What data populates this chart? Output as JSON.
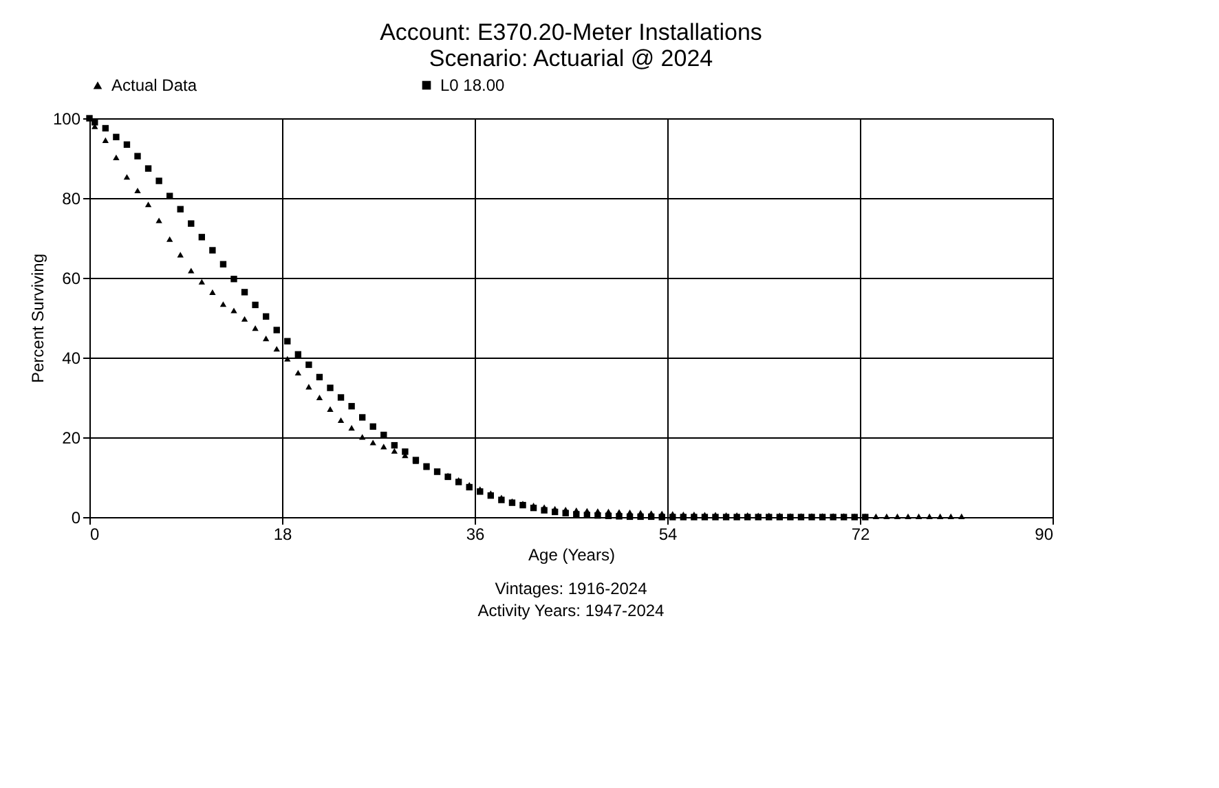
{
  "chart_data": {
    "type": "scatter",
    "title": [
      "Account: E370.20-Meter Installations",
      "Scenario: Actuarial @ 2024"
    ],
    "xlabel": "Age (Years)",
    "ylabel": "Percent Surviving",
    "annotations": [
      "Vintages: 1916-2024",
      "Activity Years: 1947-2024"
    ],
    "xlim": [
      0,
      90
    ],
    "xticks": [
      0,
      18,
      36,
      54,
      72,
      90
    ],
    "ylim": [
      0,
      100
    ],
    "yticks": [
      0,
      20,
      40,
      60,
      80,
      100
    ],
    "grid": true,
    "legend": "top",
    "series": [
      {
        "name": "Actual Data",
        "color": "#000000",
        "marker": "triangle",
        "x": [
          0.5,
          1.5,
          2.5,
          3.5,
          4.5,
          5.5,
          6.5,
          7.5,
          8.5,
          9.5,
          10.5,
          11.5,
          12.5,
          13.5,
          14.5,
          15.5,
          16.5,
          17.5,
          18.5,
          19.5,
          20.5,
          21.5,
          22.5,
          23.5,
          24.5,
          25.5,
          26.5,
          27.5,
          28.5,
          29.5,
          30.5,
          31.5,
          32.5,
          33.5,
          34.5,
          35.5,
          36.5,
          37.5,
          38.5,
          39.5,
          40.5,
          41.5,
          42.5,
          43.5,
          44.5,
          45.5,
          46.5,
          47.5,
          48.5,
          49.5,
          50.5,
          51.5,
          52.5,
          53.5,
          54.5,
          55.5,
          56.5,
          57.5,
          58.5,
          59.5,
          60.5,
          61.5,
          62.5,
          63.5,
          64.5,
          65.5,
          66.5,
          67.5,
          68.5,
          69.5,
          70.5,
          71.5,
          72.5,
          73.5,
          74.5,
          75.5,
          76.5,
          77.5,
          78.5,
          79.5,
          80.5,
          81.5
        ],
        "values": [
          98,
          94.5,
          90.2,
          85.3,
          81.9,
          78.4,
          74.4,
          69.7,
          65.8,
          61.8,
          59,
          56.4,
          53.4,
          51.8,
          49.7,
          47.4,
          44.8,
          42.2,
          39.7,
          36.2,
          32.7,
          30,
          27.1,
          24.3,
          22.4,
          20.1,
          18.7,
          17.7,
          16.6,
          15.5,
          14,
          12.5,
          11.3,
          10.4,
          9.3,
          8.1,
          7,
          6,
          4.9,
          4,
          3.4,
          2.9,
          2.5,
          2.1,
          1.9,
          1.7,
          1.6,
          1.5,
          1.4,
          1.3,
          1.2,
          1.1,
          1,
          0.9,
          0.8,
          0.7,
          0.7,
          0.6,
          0.6,
          0.5,
          0.5,
          0.5,
          0.4,
          0.4,
          0.4,
          0.3,
          0.3,
          0.3,
          0.3,
          0.3,
          0.3,
          0.2,
          0.2,
          0.2,
          0.2,
          0.2,
          0.2,
          0.2,
          0.2,
          0.2,
          0.2,
          0.2
        ]
      },
      {
        "name": "L0 18.00",
        "color": "#000000",
        "marker": "square",
        "x": [
          0,
          0.5,
          1.5,
          2.5,
          3.5,
          4.5,
          5.5,
          6.5,
          7.5,
          8.5,
          9.5,
          10.5,
          11.5,
          12.5,
          13.5,
          14.5,
          15.5,
          16.5,
          17.5,
          18.5,
          19.5,
          20.5,
          21.5,
          22.5,
          23.5,
          24.5,
          25.5,
          26.5,
          27.5,
          28.5,
          29.5,
          30.5,
          31.5,
          32.5,
          33.5,
          34.5,
          35.5,
          36.5,
          37.5,
          38.5,
          39.5,
          40.5,
          41.5,
          42.5,
          43.5,
          44.5,
          45.5,
          46.5,
          47.5,
          48.5,
          49.5,
          50.5,
          51.5,
          52.5,
          53.5,
          54.5,
          55.5,
          56.5,
          57.5,
          58.5,
          59.5,
          60.5,
          61.5,
          62.5,
          63.5,
          64.5,
          65.5,
          66.5,
          67.5,
          68.5,
          69.5,
          70.5,
          71.5,
          72.5
        ],
        "values": [
          100,
          99,
          97.5,
          95.3,
          93.4,
          90.5,
          87.4,
          84.3,
          80.5,
          77.2,
          73.6,
          70.2,
          66.9,
          63.4,
          59.7,
          56.4,
          53.2,
          50.3,
          46.9,
          44.1,
          40.8,
          38.2,
          35.1,
          32.4,
          30,
          27.8,
          25,
          22.7,
          20.6,
          18,
          16.4,
          14.3,
          12.7,
          11.4,
          10.1,
          8.8,
          7.5,
          6.4,
          5.4,
          4.3,
          3.6,
          3,
          2.3,
          1.7,
          1.3,
          1,
          0.7,
          0.5,
          0.4,
          0.3,
          0.2,
          0.1,
          0.1,
          0.1,
          0,
          0,
          0,
          0,
          0,
          0,
          0,
          0,
          0,
          0,
          0,
          0,
          0,
          0,
          0,
          0,
          0,
          0,
          0,
          0
        ]
      }
    ]
  }
}
